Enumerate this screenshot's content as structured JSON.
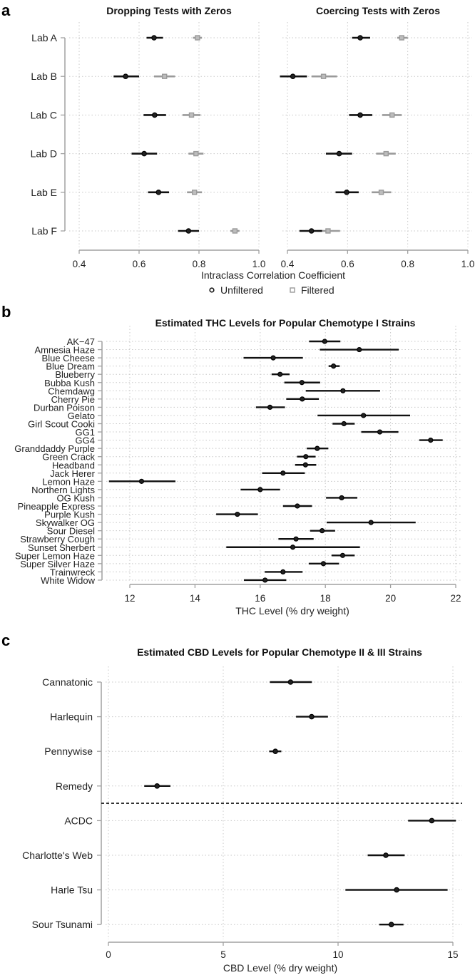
{
  "panels": [
    {
      "label": "a"
    },
    {
      "label": "b"
    },
    {
      "label": "c"
    }
  ],
  "colors": {
    "unfiltered": "#111111",
    "filtered": "#9a9a9a",
    "axis": "#a0a0a0",
    "grid": "#c8c8c8"
  },
  "legend": {
    "position": "bottom",
    "items": [
      {
        "name": "Unfiltered",
        "marker": "circle"
      },
      {
        "name": "Filtered",
        "marker": "square"
      }
    ]
  },
  "chart_data": [
    {
      "type": "scatter",
      "panel": "a",
      "title": "Dropping Tests with Zeros",
      "xlabel": "Intraclass Correlation Coefficient",
      "xlim": [
        0.4,
        1.0
      ],
      "xticks": [
        "0.4",
        "0.6",
        "0.8",
        "1.0"
      ],
      "grid": true,
      "categories": [
        "Lab A",
        "Lab B",
        "Lab C",
        "Lab D",
        "Lab E",
        "Lab F"
      ],
      "series": [
        {
          "name": "Unfiltered",
          "values": [
            0.65,
            0.555,
            0.652,
            0.617,
            0.665,
            0.765
          ],
          "lower": [
            0.625,
            0.515,
            0.615,
            0.575,
            0.63,
            0.73
          ],
          "upper": [
            0.68,
            0.6,
            0.69,
            0.66,
            0.7,
            0.8
          ]
        },
        {
          "name": "Filtered",
          "values": [
            0.795,
            0.685,
            0.775,
            0.79,
            0.785,
            0.92
          ],
          "lower": [
            0.78,
            0.65,
            0.745,
            0.765,
            0.76,
            0.905
          ],
          "upper": [
            0.81,
            0.72,
            0.805,
            0.815,
            0.81,
            0.935
          ]
        }
      ]
    },
    {
      "type": "scatter",
      "panel": "a",
      "title": "Coercing Tests with Zeros",
      "xlim": [
        0.4,
        1.0
      ],
      "xticks": [
        "0.4",
        "0.6",
        "0.8",
        "1.0"
      ],
      "grid": true,
      "categories": [
        "Lab A",
        "Lab B",
        "Lab C",
        "Lab D",
        "Lab E",
        "Lab F"
      ],
      "series": [
        {
          "name": "Unfiltered",
          "values": [
            0.642,
            0.418,
            0.642,
            0.572,
            0.597,
            0.48
          ],
          "lower": [
            0.615,
            0.375,
            0.605,
            0.528,
            0.56,
            0.44
          ],
          "upper": [
            0.675,
            0.465,
            0.682,
            0.615,
            0.637,
            0.515
          ]
        },
        {
          "name": "Filtered",
          "values": [
            0.78,
            0.52,
            0.748,
            0.728,
            0.712,
            0.535
          ],
          "lower": [
            0.765,
            0.48,
            0.715,
            0.695,
            0.68,
            0.5
          ],
          "upper": [
            0.8,
            0.565,
            0.78,
            0.76,
            0.745,
            0.575
          ]
        }
      ]
    },
    {
      "type": "scatter",
      "panel": "b",
      "title": "Estimated THC Levels for Popular Chemotype I Strains",
      "xlabel": "THC Level (% dry weight)",
      "xlim": [
        12,
        22
      ],
      "xticks": [
        "12",
        "14",
        "16",
        "18",
        "20",
        "22"
      ],
      "grid": true,
      "categories": [
        "AK−47",
        "Amnesia Haze",
        "Blue Cheese",
        "Blue Dream",
        "Blueberry",
        "Bubba Kush",
        "Chemdawg",
        "Cherry Pie",
        "Durban Poison",
        "Gelato",
        "Girl Scout Cooki",
        "GG1",
        "GG4",
        "Granddaddy Purple",
        "Green Crack",
        "Headband",
        "Jack Herer",
        "Lemon Haze",
        "Northern Lights",
        "OG Kush",
        "Pineapple Express",
        "Purple Kush",
        "Skywalker OG",
        "Sour Diesel",
        "Strawberry Cough",
        "Sunset Sherbert",
        "Super Lemon Haze",
        "Super Silver Haze",
        "Trainwreck",
        "White Widow"
      ],
      "series": [
        {
          "values": [
            17.98,
            19.04,
            16.4,
            18.25,
            16.61,
            17.28,
            18.54,
            17.29,
            16.3,
            19.17,
            18.57,
            19.67,
            21.23,
            17.75,
            17.4,
            17.39,
            16.7,
            12.36,
            16.0,
            18.5,
            17.14,
            15.3,
            19.4,
            17.9,
            17.1,
            17.0,
            18.53,
            17.94,
            16.7,
            16.15
          ],
          "lower": [
            17.5,
            17.83,
            15.49,
            18.1,
            16.35,
            16.74,
            17.4,
            16.8,
            15.87,
            17.76,
            18.22,
            19.1,
            20.88,
            17.43,
            17.13,
            17.07,
            16.06,
            11.36,
            15.4,
            18.02,
            16.7,
            14.65,
            18.04,
            17.53,
            16.56,
            14.96,
            18.19,
            17.49,
            16.14,
            15.5
          ],
          "upper": [
            18.46,
            20.25,
            17.31,
            18.44,
            16.9,
            17.84,
            19.68,
            17.8,
            16.76,
            20.6,
            18.9,
            20.24,
            21.6,
            18.09,
            17.7,
            17.72,
            17.37,
            13.4,
            16.61,
            18.98,
            17.59,
            15.93,
            20.77,
            18.3,
            17.64,
            19.06,
            18.9,
            18.42,
            17.3,
            16.8
          ]
        }
      ]
    },
    {
      "type": "scatter",
      "panel": "c",
      "title": "Estimated CBD Levels for Popular Chemotype II & III Strains",
      "xlabel": "CBD Level (% dry weight)",
      "xlim": [
        0,
        15
      ],
      "xticks": [
        "0",
        "5",
        "10",
        "15"
      ],
      "grid": true,
      "categories": [
        "Cannatonic",
        "Harlequin",
        "Pennywise",
        "Remedy",
        "ACDC",
        "Charlotte's Web",
        "Harle Tsu",
        "Sour Tsunami"
      ],
      "separator_after": "Remedy",
      "series": [
        {
          "values": [
            7.93,
            8.85,
            7.27,
            2.12,
            14.08,
            12.08,
            12.55,
            12.32
          ],
          "lower": [
            7.03,
            8.17,
            7.0,
            1.56,
            13.05,
            11.29,
            10.32,
            11.79
          ],
          "upper": [
            8.86,
            9.56,
            7.53,
            2.7,
            15.13,
            12.9,
            14.77,
            12.85
          ]
        }
      ]
    }
  ]
}
